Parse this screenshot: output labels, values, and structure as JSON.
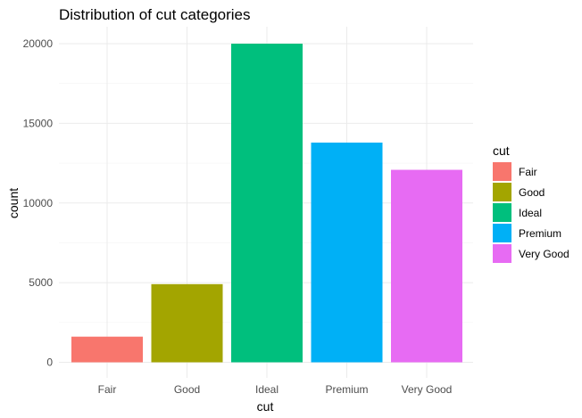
{
  "chart_data": {
    "type": "bar",
    "title": "Distribution of cut categories",
    "xlabel": "cut",
    "ylabel": "count",
    "categories": [
      "Fair",
      "Good",
      "Ideal",
      "Premium",
      "Very Good"
    ],
    "values": [
      1610,
      4906,
      21551,
      13791,
      12082
    ],
    "colors": [
      "#F8766D",
      "#A3A500",
      "#00BF7D",
      "#00B0F6",
      "#E76BF3"
    ],
    "ylim": [
      0,
      20000
    ],
    "yticks": [
      0,
      5000,
      10000,
      15000,
      20000
    ],
    "grid": true,
    "legend": {
      "title": "cut",
      "position": "right",
      "entries": [
        "Fair",
        "Good",
        "Ideal",
        "Premium",
        "Very Good"
      ]
    }
  }
}
